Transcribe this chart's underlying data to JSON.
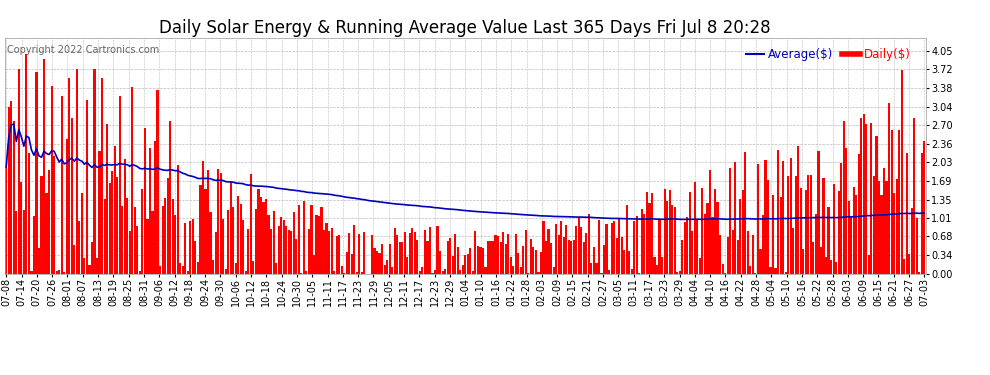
{
  "title": "Daily Solar Energy & Running Average Value Last 365 Days Fri Jul 8 20:28",
  "copyright": "Copyright 2022 Cartronics.com",
  "legend_avg": "Average($)",
  "legend_daily": "Daily($)",
  "bar_color": "#ff0000",
  "avg_line_color": "#0000bb",
  "background_color": "#ffffff",
  "plot_bg_color": "#ffffff",
  "grid_color": "#bbbbbb",
  "yticks": [
    0.0,
    0.34,
    0.68,
    1.01,
    1.35,
    1.69,
    2.03,
    2.36,
    2.7,
    3.04,
    3.38,
    3.72,
    4.05
  ],
  "ylim": [
    0.0,
    4.3
  ],
  "xtick_labels": [
    "07-08",
    "07-14",
    "07-20",
    "07-26",
    "08-01",
    "08-07",
    "08-13",
    "08-19",
    "08-25",
    "08-31",
    "09-06",
    "09-12",
    "09-18",
    "09-24",
    "09-30",
    "10-06",
    "10-12",
    "10-18",
    "10-24",
    "10-30",
    "11-05",
    "11-11",
    "11-17",
    "11-23",
    "11-29",
    "12-05",
    "12-11",
    "12-17",
    "12-23",
    "12-29",
    "01-04",
    "01-10",
    "01-16",
    "01-22",
    "01-28",
    "02-03",
    "02-09",
    "02-15",
    "02-21",
    "02-27",
    "03-05",
    "03-11",
    "03-17",
    "03-23",
    "03-29",
    "04-04",
    "04-10",
    "04-16",
    "04-22",
    "04-28",
    "05-04",
    "05-10",
    "05-16",
    "05-22",
    "05-28",
    "06-03",
    "06-09",
    "06-15",
    "06-21",
    "06-27",
    "07-03"
  ],
  "num_days": 365,
  "title_fontsize": 12,
  "tick_fontsize": 7,
  "copyright_fontsize": 7,
  "legend_fontsize": 8.5
}
